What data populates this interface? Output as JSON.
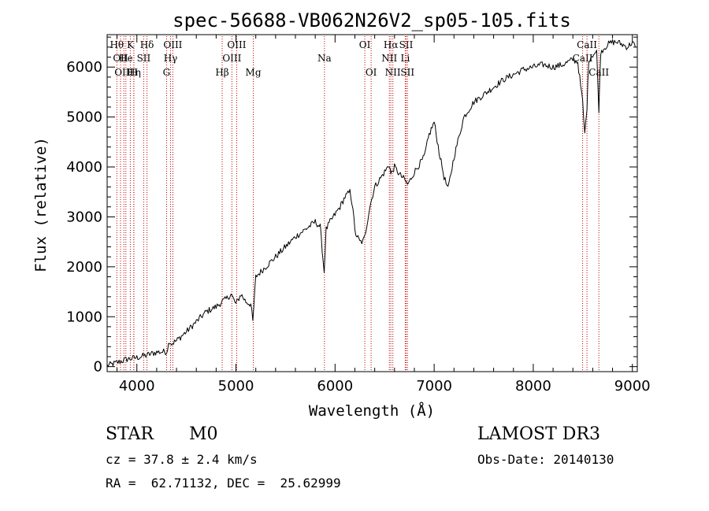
{
  "chart_data": {
    "type": "line",
    "title": "spec-56688-VB062N26V2_sp05-105.fits",
    "xlabel": "Wavelength (Å)",
    "ylabel": "Flux (relative)",
    "xlim": [
      3700,
      9050
    ],
    "ylim": [
      -100,
      6650
    ],
    "x_ticks": [
      4000,
      5000,
      6000,
      7000,
      8000,
      9000
    ],
    "y_ticks": [
      0,
      1000,
      2000,
      3000,
      4000,
      5000,
      6000
    ],
    "x_tick_labels": [
      "4000",
      "5000",
      "6000",
      "7000",
      "8000",
      "9000"
    ],
    "y_tick_labels": [
      "0",
      "1000",
      "2000",
      "3000",
      "4000",
      "5000",
      "6000"
    ],
    "series": [
      {
        "name": "spectrum",
        "x": [
          3700,
          3800,
          3900,
          4000,
          4100,
          4200,
          4300,
          4330,
          4350,
          4400,
          4500,
          4600,
          4700,
          4800,
          4860,
          4900,
          4950,
          5000,
          5050,
          5100,
          5150,
          5170,
          5200,
          5300,
          5400,
          5500,
          5600,
          5700,
          5800,
          5850,
          5890,
          5910,
          5950,
          6000,
          6050,
          6100,
          6150,
          6180,
          6200,
          6250,
          6280,
          6300,
          6350,
          6400,
          6450,
          6500,
          6550,
          6563,
          6600,
          6650,
          6700,
          6730,
          6750,
          6800,
          6850,
          6900,
          6950,
          7000,
          7050,
          7100,
          7140,
          7200,
          7250,
          7300,
          7400,
          7500,
          7600,
          7700,
          7800,
          7900,
          8000,
          8100,
          8200,
          8300,
          8400,
          8450,
          8498,
          8520,
          8542,
          8560,
          8600,
          8640,
          8662,
          8680,
          8700,
          8750,
          8800,
          8850,
          8900,
          8950,
          9000,
          9030
        ],
        "y": [
          20,
          80,
          150,
          180,
          230,
          290,
          300,
          520,
          460,
          520,
          700,
          900,
          1100,
          1200,
          1300,
          1350,
          1450,
          1250,
          1450,
          1300,
          1250,
          900,
          1800,
          2000,
          2200,
          2400,
          2600,
          2750,
          2900,
          2800,
          1900,
          2750,
          2900,
          3050,
          3200,
          3400,
          3500,
          3200,
          2700,
          2500,
          2500,
          2600,
          3200,
          3600,
          3750,
          3900,
          4050,
          3850,
          4000,
          3850,
          3750,
          3650,
          3700,
          3900,
          4050,
          4200,
          4650,
          4900,
          4300,
          3800,
          3550,
          4200,
          4600,
          5000,
          5300,
          5450,
          5600,
          5750,
          5850,
          5950,
          6000,
          6050,
          6000,
          6050,
          6150,
          6100,
          5300,
          4650,
          5200,
          6150,
          6250,
          6300,
          5150,
          6300,
          6350,
          6450,
          6500,
          6500,
          6450,
          6400,
          6500,
          6400
        ]
      }
    ],
    "line_markers": [
      {
        "wavelength": 3798,
        "label": "Hθ",
        "row": 1
      },
      {
        "wavelength": 3835,
        "label": "OII",
        "row": 2
      },
      {
        "wavelength": 3869,
        "label": "OIII",
        "row": 3
      },
      {
        "wavelength": 3889,
        "label": "He",
        "row": 2
      },
      {
        "wavelength": 3934,
        "label": "K",
        "row": 1
      },
      {
        "wavelength": 3970,
        "label": "Hη",
        "row": 3
      },
      {
        "wavelength": 3969,
        "label": "H",
        "row": 3
      },
      {
        "wavelength": 4069,
        "label": "SII",
        "row": 2
      },
      {
        "wavelength": 4102,
        "label": "Hδ",
        "row": 1
      },
      {
        "wavelength": 4300,
        "label": "G",
        "row": 3
      },
      {
        "wavelength": 4340,
        "label": "Hγ",
        "row": 2
      },
      {
        "wavelength": 4363,
        "label": "OIII",
        "row": 1
      },
      {
        "wavelength": 4861,
        "label": "Hβ",
        "row": 3
      },
      {
        "wavelength": 4959,
        "label": "OIII",
        "row": 2
      },
      {
        "wavelength": 5007,
        "label": "OIII",
        "row": 1
      },
      {
        "wavelength": 5175,
        "label": "Mg",
        "row": 3
      },
      {
        "wavelength": 5893,
        "label": "Na",
        "row": 2
      },
      {
        "wavelength": 6300,
        "label": "OI",
        "row": 1
      },
      {
        "wavelength": 6364,
        "label": "OI",
        "row": 3
      },
      {
        "wavelength": 6548,
        "label": "NII",
        "row": 2
      },
      {
        "wavelength": 6563,
        "label": "Hα",
        "row": 1
      },
      {
        "wavelength": 6583,
        "label": "NII",
        "row": 3
      },
      {
        "wavelength": 6708,
        "label": "Li",
        "row": 2
      },
      {
        "wavelength": 6717,
        "label": "SII",
        "row": 1
      },
      {
        "wavelength": 6731,
        "label": "SII",
        "row": 3
      },
      {
        "wavelength": 8498,
        "label": "CaII",
        "row": 2
      },
      {
        "wavelength": 8542,
        "label": "CaII",
        "row": 1
      },
      {
        "wavelength": 8662,
        "label": "CaII",
        "row": 3
      }
    ]
  },
  "info": {
    "object_class": "STAR",
    "subclass": "M0",
    "survey": "LAMOST DR3",
    "redshift": "cz = 37.8 ± 2.4 km/s",
    "obs_date": "Obs-Date: 20140130",
    "coords": "RA =  62.71132, DEC =  25.62999"
  },
  "colors": {
    "axis": "#000000",
    "spectrum": "#000000",
    "marker_line": "#c00000",
    "background": "#ffffff"
  }
}
